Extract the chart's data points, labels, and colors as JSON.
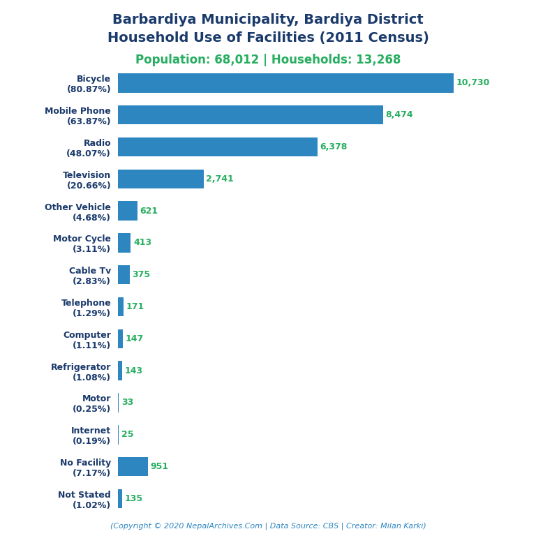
{
  "title_line1": "Barbardiya Municipality, Bardiya District",
  "title_line2": "Household Use of Facilities (2011 Census)",
  "subtitle": "Population: 68,012 | Households: 13,268",
  "categories": [
    "Bicycle\n(80.87%)",
    "Mobile Phone\n(63.87%)",
    "Radio\n(48.07%)",
    "Television\n(20.66%)",
    "Other Vehicle\n(4.68%)",
    "Motor Cycle\n(3.11%)",
    "Cable Tv\n(2.83%)",
    "Telephone\n(1.29%)",
    "Computer\n(1.11%)",
    "Refrigerator\n(1.08%)",
    "Motor\n(0.25%)",
    "Internet\n(0.19%)",
    "No Facility\n(7.17%)",
    "Not Stated\n(1.02%)"
  ],
  "values": [
    10730,
    8474,
    6378,
    2741,
    621,
    413,
    375,
    171,
    147,
    143,
    33,
    25,
    951,
    135
  ],
  "value_labels": [
    "10,730",
    "8,474",
    "6,378",
    "2,741",
    "621",
    "413",
    "375",
    "171",
    "147",
    "143",
    "33",
    "25",
    "951",
    "135"
  ],
  "bar_color": "#2e86c1",
  "value_color": "#27ae60",
  "title_color": "#1a3a6b",
  "subtitle_color": "#27ae60",
  "ylabel_color": "#1a3a6b",
  "copyright_text": "(Copyright © 2020 NepalArchives.Com | Data Source: CBS | Creator: Milan Karki)",
  "copyright_color": "#2e86c1",
  "background_color": "#ffffff",
  "xlim": [
    0,
    12000
  ],
  "title_fontsize": 14,
  "subtitle_fontsize": 12,
  "label_fontsize": 9,
  "value_fontsize": 9,
  "copyright_fontsize": 8
}
